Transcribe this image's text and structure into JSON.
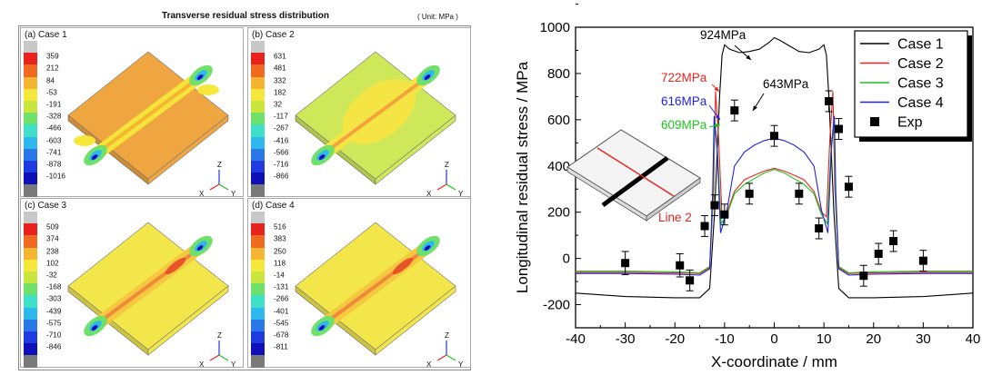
{
  "figure": {
    "title": "Transverse residual stress distribution",
    "unit": "( Unit: MPa )"
  },
  "contour_panels": [
    {
      "label": "(a) Case 1",
      "ticks": [
        "359",
        "212",
        "84",
        "-53",
        "-191",
        "-328",
        "-466",
        "-603",
        "-741",
        "-878",
        "-1016"
      ],
      "base_color": "#f0a640",
      "band_color": "#f7e43a",
      "weld_color": "#f4b632"
    },
    {
      "label": "(b) Case 2",
      "ticks": [
        "631",
        "481",
        "332",
        "182",
        "32",
        "-117",
        "-267",
        "-416",
        "-566",
        "-716",
        "-866"
      ],
      "base_color": "#cfe85a",
      "band_color": "#f5e544",
      "weld_color": "#f5a33c"
    },
    {
      "label": "(c) Case 3",
      "ticks": [
        "509",
        "374",
        "238",
        "102",
        "-32",
        "-168",
        "-303",
        "-439",
        "-575",
        "-710",
        "-846"
      ],
      "base_color": "#f2e64b",
      "band_color": "#f5c83f",
      "weld_color": "#f08a3a"
    },
    {
      "label": "(d) Case 4",
      "ticks": [
        "516",
        "383",
        "250",
        "118",
        "-14",
        "-131",
        "-266",
        "-401",
        "-545",
        "-678",
        "-811"
      ],
      "base_color": "#f2e64b",
      "band_color": "#f5c83f",
      "weld_color": "#f08a3a"
    }
  ],
  "colorbar_colors": [
    "#c8c8c8",
    "#e8221c",
    "#f06a22",
    "#f4b632",
    "#f6e83a",
    "#c9e63e",
    "#6fe06a",
    "#3fe0c8",
    "#2fb8ee",
    "#2a78e8",
    "#1f3ae0",
    "#0f10b8",
    "#7a7a7a"
  ],
  "axis_triad": {
    "z": "Z",
    "x": "X",
    "y": "Y"
  },
  "chart_data": {
    "type": "line",
    "title": "",
    "xlabel": "X-coordinate / mm",
    "ylabel": "Longitudinal residual stress / MPa",
    "xlim": [
      -40,
      40
    ],
    "ylim": [
      -300,
      1000
    ],
    "xticks": [
      -40,
      -30,
      -20,
      -10,
      0,
      10,
      20,
      30,
      40
    ],
    "yticks": [
      -200,
      0,
      200,
      400,
      600,
      800,
      1000
    ],
    "legend_position": "top-right",
    "series": [
      {
        "name": "Case 1",
        "color": "#000000",
        "x": [
          -40,
          -30,
          -20,
          -15,
          -13,
          -12,
          -11,
          -10.5,
          -10,
          -9,
          -7,
          -5,
          -3,
          -1,
          0,
          1,
          3,
          5,
          7,
          9,
          10,
          10.5,
          11,
          12,
          13,
          15,
          20,
          30,
          40
        ],
        "y": [
          -150,
          -165,
          -170,
          -170,
          -130,
          200,
          700,
          880,
          924,
          905,
          890,
          895,
          905,
          935,
          955,
          945,
          920,
          895,
          890,
          905,
          924,
          880,
          700,
          200,
          -130,
          -170,
          -170,
          -165,
          -150
        ]
      },
      {
        "name": "Case 2",
        "color": "#e8251f",
        "x": [
          -40,
          -30,
          -20,
          -15,
          -13,
          -12.2,
          -11.8,
          -11.2,
          -10.5,
          -9.5,
          -8,
          -6,
          -4,
          -2,
          0,
          2,
          4,
          6,
          8,
          9.5,
          10.5,
          11.2,
          11.8,
          12.2,
          13,
          15,
          20,
          30,
          40
        ],
        "y": [
          -60,
          -60,
          -62,
          -65,
          -40,
          300,
          722,
          520,
          180,
          200,
          290,
          340,
          360,
          378,
          390,
          378,
          360,
          340,
          290,
          200,
          180,
          520,
          722,
          300,
          -40,
          -65,
          -62,
          -60,
          -60
        ]
      },
      {
        "name": "Case 3",
        "color": "#1fc21f",
        "x": [
          -40,
          -30,
          -20,
          -15,
          -13,
          -12.3,
          -12,
          -11.4,
          -10.7,
          -9.5,
          -8,
          -6,
          -4,
          -2,
          0,
          2,
          4,
          6,
          8,
          9.5,
          10.7,
          11.4,
          12,
          12.3,
          13,
          15,
          20,
          30,
          40
        ],
        "y": [
          -55,
          -55,
          -58,
          -62,
          -35,
          280,
          609,
          460,
          150,
          190,
          280,
          320,
          345,
          370,
          385,
          370,
          345,
          320,
          280,
          190,
          150,
          460,
          609,
          280,
          -35,
          -62,
          -58,
          -55,
          -55
        ]
      },
      {
        "name": "Case 4",
        "color": "#2323d9",
        "x": [
          -40,
          -30,
          -20,
          -15,
          -13,
          -12.4,
          -12.1,
          -11.5,
          -10.8,
          -9.5,
          -8,
          -6,
          -4,
          -2,
          0,
          2,
          4,
          6,
          8,
          9.5,
          10.8,
          11.5,
          12.1,
          12.4,
          13,
          15,
          20,
          30,
          40
        ],
        "y": [
          -65,
          -65,
          -68,
          -72,
          -45,
          290,
          616,
          470,
          110,
          210,
          400,
          460,
          490,
          510,
          520,
          510,
          490,
          460,
          400,
          210,
          110,
          470,
          616,
          290,
          -45,
          -72,
          -68,
          -65,
          -65
        ]
      }
    ],
    "points": {
      "name": "Exp",
      "x": [
        -30,
        -19,
        -17,
        -14,
        -12,
        -10,
        -8,
        -5,
        0,
        5,
        9,
        11,
        13,
        15,
        18,
        21,
        24,
        30
      ],
      "y": [
        -20,
        -30,
        -95,
        140,
        230,
        190,
        640,
        280,
        530,
        280,
        130,
        680,
        560,
        310,
        -75,
        20,
        75,
        -10
      ],
      "err": [
        50,
        50,
        45,
        45,
        45,
        45,
        45,
        45,
        45,
        45,
        45,
        45,
        45,
        45,
        45,
        45,
        45,
        45
      ]
    },
    "annotations": [
      {
        "text": "924MPa",
        "color": "#000000"
      },
      {
        "text": "643MPa",
        "color": "#000000"
      },
      {
        "text": "722MPa",
        "color": "#e8251f"
      },
      {
        "text": "616MPa",
        "color": "#2323d9"
      },
      {
        "text": "609MPa",
        "color": "#1fc21f"
      },
      {
        "text": "Line 2",
        "color": "#e8251f"
      }
    ]
  }
}
